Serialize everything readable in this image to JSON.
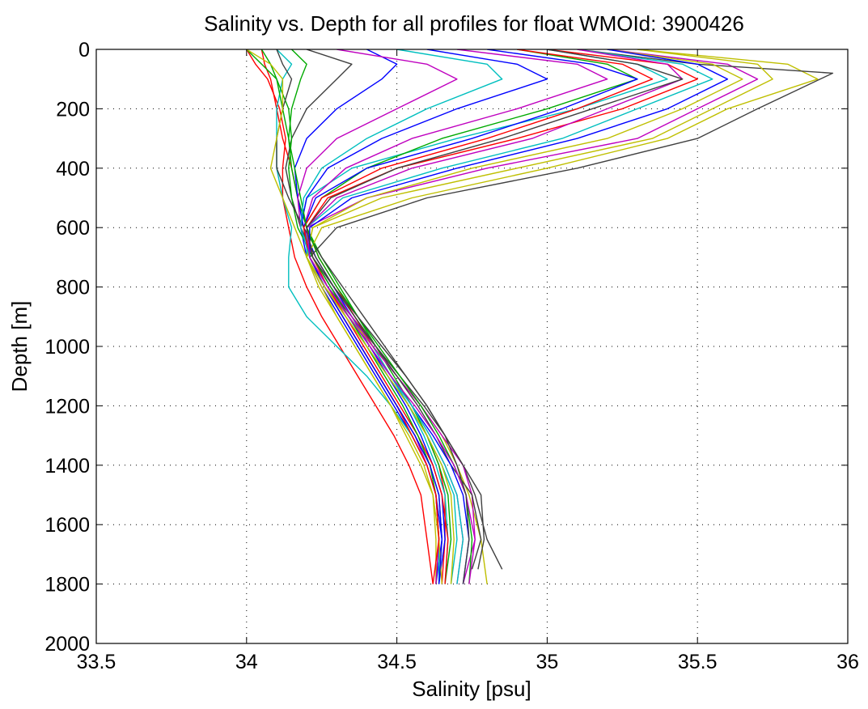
{
  "chart_data": {
    "type": "line",
    "title": "Salinity vs. Depth for all profiles for float WMOId: 3900426",
    "xlabel": "Salinity [psu]",
    "ylabel": "Depth [m]",
    "xlim": [
      33.5,
      36
    ],
    "ylim": [
      0,
      2000
    ],
    "y_reversed": true,
    "x_ticks": [
      "33.5",
      "34",
      "34.5",
      "35",
      "35.5",
      "36"
    ],
    "y_ticks": [
      "0",
      "200",
      "400",
      "600",
      "800",
      "1000",
      "1200",
      "1400",
      "1600",
      "1800",
      "2000"
    ],
    "grid": true,
    "legend": "none",
    "series_colors": [
      "#ff0000",
      "#00aa00",
      "#0000ff",
      "#00bfbf",
      "#bf00bf",
      "#bfbf00",
      "#404040"
    ],
    "series": [
      {
        "x": [
          34.05,
          34.06,
          34.08,
          34.1,
          34.12,
          34.15,
          34.17,
          34.2,
          34.24,
          34.3,
          34.36,
          34.42,
          34.48,
          34.54,
          34.6,
          34.64,
          34.66,
          34.66,
          34.65
        ],
        "y": [
          0,
          50,
          100,
          200,
          300,
          400,
          500,
          600,
          700,
          800,
          900,
          1000,
          1100,
          1200,
          1300,
          1400,
          1500,
          1650,
          1800
        ]
      },
      {
        "x": [
          34.15,
          34.2,
          34.18,
          34.15,
          34.14,
          34.15,
          34.17,
          34.2,
          34.25,
          34.31,
          34.37,
          34.43,
          34.49,
          34.55,
          34.6,
          34.64,
          34.67,
          34.68,
          34.66
        ],
        "y": [
          0,
          50,
          100,
          200,
          300,
          400,
          500,
          600,
          700,
          800,
          900,
          1000,
          1100,
          1200,
          1300,
          1400,
          1500,
          1650,
          1800
        ]
      },
      {
        "x": [
          34.4,
          34.5,
          34.45,
          34.3,
          34.2,
          34.16,
          34.17,
          34.19,
          34.23,
          34.29,
          34.35,
          34.41,
          34.47,
          34.53,
          34.58,
          34.62,
          34.65,
          34.66,
          34.64
        ],
        "y": [
          0,
          50,
          100,
          200,
          300,
          400,
          500,
          600,
          700,
          800,
          900,
          1000,
          1100,
          1200,
          1300,
          1400,
          1500,
          1650,
          1800
        ]
      },
      {
        "x": [
          35.0,
          35.3,
          35.4,
          35.1,
          34.7,
          34.35,
          34.2,
          34.18,
          34.22,
          34.28,
          34.35,
          34.42,
          34.48,
          34.54,
          34.59,
          34.63,
          34.66,
          34.67,
          34.66
        ],
        "y": [
          0,
          50,
          100,
          200,
          300,
          400,
          500,
          600,
          700,
          800,
          900,
          1000,
          1100,
          1200,
          1300,
          1400,
          1500,
          1650,
          1800
        ]
      },
      {
        "x": [
          35.2,
          35.6,
          35.7,
          35.5,
          35.3,
          34.8,
          34.4,
          34.2,
          34.21,
          34.27,
          34.34,
          34.41,
          34.48,
          34.55,
          34.61,
          34.66,
          34.7,
          34.72,
          34.7
        ],
        "y": [
          0,
          50,
          100,
          200,
          300,
          400,
          500,
          600,
          700,
          800,
          900,
          1000,
          1100,
          1200,
          1300,
          1400,
          1500,
          1650,
          1800
        ]
      },
      {
        "x": [
          35.3,
          35.8,
          35.9,
          35.6,
          35.4,
          35.0,
          34.55,
          34.25,
          34.2,
          34.26,
          34.34,
          34.42,
          34.5,
          34.58,
          34.65,
          34.7,
          34.74,
          34.78,
          34.8
        ],
        "y": [
          0,
          50,
          100,
          200,
          300,
          400,
          500,
          600,
          700,
          800,
          900,
          1000,
          1100,
          1200,
          1300,
          1400,
          1500,
          1650,
          1800
        ]
      },
      {
        "x": [
          35.1,
          35.5,
          35.95,
          35.7,
          35.5,
          35.1,
          34.6,
          34.3,
          34.21,
          34.27,
          34.35,
          34.43,
          34.51,
          34.59,
          34.66,
          34.72,
          34.76,
          34.8,
          34.85
        ],
        "y": [
          0,
          50,
          80,
          200,
          300,
          400,
          500,
          600,
          700,
          800,
          900,
          1000,
          1100,
          1200,
          1300,
          1400,
          1500,
          1650,
          1750
        ]
      },
      {
        "x": [
          34.0,
          34.03,
          34.07,
          34.11,
          34.13,
          34.12,
          34.12,
          34.14,
          34.16,
          34.2,
          34.25,
          34.31,
          34.37,
          34.43,
          34.49,
          34.54,
          34.58,
          34.6,
          34.62
        ],
        "y": [
          0,
          50,
          100,
          200,
          300,
          400,
          500,
          600,
          700,
          800,
          900,
          1000,
          1100,
          1200,
          1300,
          1400,
          1500,
          1650,
          1800
        ]
      },
      {
        "x": [
          34.9,
          35.2,
          35.3,
          35.0,
          34.65,
          34.4,
          34.25,
          34.19,
          34.21,
          34.26,
          34.32,
          34.38,
          34.44,
          34.5,
          34.56,
          34.61,
          34.64,
          34.65,
          34.64
        ],
        "y": [
          0,
          50,
          100,
          200,
          300,
          400,
          500,
          600,
          700,
          800,
          900,
          1000,
          1100,
          1200,
          1300,
          1400,
          1500,
          1650,
          1800
        ]
      },
      {
        "x": [
          34.6,
          34.9,
          35.0,
          34.7,
          34.45,
          34.27,
          34.2,
          34.18,
          34.2,
          34.25,
          34.31,
          34.37,
          34.43,
          34.49,
          34.55,
          34.6,
          34.63,
          34.65,
          34.63
        ],
        "y": [
          0,
          50,
          100,
          200,
          300,
          400,
          500,
          600,
          700,
          800,
          900,
          1000,
          1100,
          1200,
          1300,
          1400,
          1500,
          1650,
          1800
        ]
      },
      {
        "x": [
          34.1,
          34.15,
          34.12,
          34.1,
          34.1,
          34.1,
          34.12,
          34.15,
          34.14,
          34.14,
          34.2,
          34.3,
          34.4,
          34.48,
          34.55,
          34.6,
          34.63,
          34.64,
          34.64
        ],
        "y": [
          0,
          50,
          100,
          200,
          300,
          400,
          500,
          600,
          700,
          800,
          900,
          1000,
          1100,
          1200,
          1300,
          1400,
          1500,
          1650,
          1800
        ]
      },
      {
        "x": [
          34.7,
          35.1,
          35.2,
          34.9,
          34.55,
          34.33,
          34.22,
          34.19,
          34.22,
          34.28,
          34.35,
          34.42,
          34.5,
          34.58,
          34.65,
          34.72,
          34.75,
          34.76,
          34.72
        ],
        "y": [
          0,
          50,
          100,
          200,
          300,
          400,
          500,
          600,
          700,
          800,
          900,
          1000,
          1100,
          1200,
          1300,
          1400,
          1500,
          1650,
          1800
        ]
      },
      {
        "x": [
          35.2,
          35.55,
          35.65,
          35.45,
          35.2,
          34.75,
          34.4,
          34.22,
          34.2,
          34.25,
          34.3,
          34.36,
          34.42,
          34.48,
          34.54,
          34.59,
          34.62,
          34.63,
          34.63
        ],
        "y": [
          0,
          50,
          100,
          200,
          300,
          400,
          500,
          600,
          700,
          800,
          900,
          1000,
          1100,
          1200,
          1300,
          1400,
          1500,
          1650,
          1800
        ]
      },
      {
        "x": [
          34.2,
          34.35,
          34.3,
          34.2,
          34.15,
          34.13,
          34.15,
          34.18,
          34.23,
          34.29,
          34.36,
          34.43,
          34.5,
          34.57,
          34.63,
          34.68,
          34.75,
          34.78,
          34.75
        ],
        "y": [
          0,
          50,
          100,
          200,
          300,
          400,
          500,
          600,
          700,
          800,
          900,
          1000,
          1100,
          1200,
          1300,
          1400,
          1500,
          1650,
          1750
        ]
      },
      {
        "x": [
          35.0,
          35.4,
          35.5,
          35.25,
          34.9,
          34.5,
          34.27,
          34.2,
          34.22,
          34.27,
          34.33,
          34.39,
          34.45,
          34.51,
          34.57,
          34.62,
          34.65,
          34.67,
          34.66
        ],
        "y": [
          0,
          50,
          100,
          200,
          300,
          400,
          500,
          600,
          700,
          800,
          900,
          1000,
          1100,
          1200,
          1300,
          1400,
          1500,
          1650,
          1800
        ]
      },
      {
        "x": [
          34.0,
          34.05,
          34.1,
          34.14,
          34.15,
          34.14,
          34.15,
          34.17,
          34.22,
          34.28,
          34.34,
          34.4,
          34.46,
          34.52,
          34.57,
          34.61,
          34.63,
          34.64,
          34.63
        ],
        "y": [
          0,
          50,
          100,
          200,
          300,
          400,
          500,
          600,
          700,
          800,
          900,
          1000,
          1100,
          1200,
          1300,
          1400,
          1500,
          1650,
          1800
        ]
      },
      {
        "x": [
          34.8,
          35.15,
          35.3,
          35.05,
          34.75,
          34.4,
          34.23,
          34.19,
          34.21,
          34.27,
          34.34,
          34.41,
          34.48,
          34.55,
          34.62,
          34.68,
          34.72,
          34.74,
          34.72
        ],
        "y": [
          0,
          50,
          100,
          200,
          300,
          400,
          500,
          600,
          700,
          800,
          900,
          1000,
          1100,
          1200,
          1300,
          1400,
          1500,
          1650,
          1800
        ]
      },
      {
        "x": [
          35.1,
          35.45,
          35.55,
          35.3,
          35.05,
          34.65,
          34.32,
          34.2,
          34.2,
          34.26,
          34.33,
          34.4,
          34.47,
          34.54,
          34.6,
          34.65,
          34.69,
          34.7,
          34.68
        ],
        "y": [
          0,
          50,
          100,
          200,
          300,
          400,
          500,
          600,
          700,
          800,
          900,
          1000,
          1100,
          1200,
          1300,
          1400,
          1500,
          1650,
          1800
        ]
      },
      {
        "x": [
          34.3,
          34.6,
          34.7,
          34.5,
          34.3,
          34.2,
          34.17,
          34.18,
          34.21,
          34.26,
          34.32,
          34.38,
          34.44,
          34.5,
          34.56,
          34.6,
          34.63,
          34.64,
          34.63
        ],
        "y": [
          0,
          50,
          100,
          200,
          300,
          400,
          500,
          600,
          700,
          800,
          900,
          1000,
          1100,
          1200,
          1300,
          1400,
          1500,
          1650,
          1800
        ]
      },
      {
        "x": [
          35.3,
          35.7,
          35.75,
          35.55,
          35.35,
          34.9,
          34.45,
          34.22,
          34.2,
          34.24,
          34.3,
          34.36,
          34.42,
          34.48,
          34.53,
          34.58,
          34.62,
          34.64,
          34.65
        ],
        "y": [
          0,
          50,
          100,
          200,
          300,
          400,
          500,
          600,
          700,
          800,
          900,
          1000,
          1100,
          1200,
          1300,
          1400,
          1500,
          1650,
          1800
        ]
      },
      {
        "x": [
          34.1,
          34.12,
          34.15,
          34.12,
          34.1,
          34.1,
          34.14,
          34.19,
          34.25,
          34.32,
          34.39,
          34.46,
          34.53,
          34.6,
          34.66,
          34.72,
          34.78,
          34.79,
          34.77
        ],
        "y": [
          0,
          50,
          100,
          200,
          300,
          400,
          500,
          600,
          700,
          800,
          900,
          1000,
          1100,
          1200,
          1300,
          1400,
          1500,
          1650,
          1750
        ]
      },
      {
        "x": [
          34.9,
          35.25,
          35.35,
          35.1,
          34.8,
          34.45,
          34.25,
          34.19,
          34.21,
          34.26,
          34.32,
          34.38,
          34.44,
          34.5,
          34.55,
          34.6,
          34.63,
          34.64,
          34.62
        ],
        "y": [
          0,
          50,
          100,
          200,
          300,
          400,
          500,
          600,
          700,
          800,
          900,
          1000,
          1100,
          1200,
          1300,
          1400,
          1500,
          1650,
          1800
        ]
      },
      {
        "x": [
          34.05,
          34.08,
          34.1,
          34.12,
          34.14,
          34.16,
          34.18,
          34.2,
          34.24,
          34.3,
          34.37,
          34.44,
          34.51,
          34.58,
          34.64,
          34.69,
          34.73,
          34.75,
          34.74
        ],
        "y": [
          0,
          50,
          100,
          200,
          300,
          400,
          500,
          600,
          700,
          800,
          900,
          1000,
          1100,
          1200,
          1300,
          1400,
          1500,
          1650,
          1800
        ]
      },
      {
        "x": [
          35.2,
          35.5,
          35.6,
          35.4,
          35.1,
          34.7,
          34.35,
          34.21,
          34.21,
          34.26,
          34.32,
          34.38,
          34.44,
          34.5,
          34.56,
          34.61,
          34.64,
          34.65,
          34.64
        ],
        "y": [
          0,
          50,
          100,
          200,
          300,
          400,
          500,
          600,
          700,
          800,
          900,
          1000,
          1100,
          1200,
          1300,
          1400,
          1500,
          1650,
          1800
        ]
      },
      {
        "x": [
          34.5,
          34.8,
          34.85,
          34.6,
          34.4,
          34.25,
          34.19,
          34.18,
          34.21,
          34.27,
          34.34,
          34.41,
          34.48,
          34.55,
          34.61,
          34.66,
          34.7,
          34.72,
          34.7
        ],
        "y": [
          0,
          50,
          100,
          200,
          300,
          400,
          500,
          600,
          700,
          800,
          900,
          1000,
          1100,
          1200,
          1300,
          1400,
          1500,
          1650,
          1800
        ]
      },
      {
        "x": [
          35.1,
          35.4,
          35.45,
          35.2,
          34.95,
          34.55,
          34.3,
          34.2,
          34.21,
          34.27,
          34.34,
          34.41,
          34.48,
          34.56,
          34.63,
          34.69,
          34.73,
          34.76,
          34.74
        ],
        "y": [
          0,
          50,
          100,
          200,
          300,
          400,
          500,
          600,
          700,
          800,
          900,
          1000,
          1100,
          1200,
          1300,
          1400,
          1500,
          1650,
          1800
        ]
      },
      {
        "x": [
          34.0,
          34.08,
          34.12,
          34.12,
          34.1,
          34.08,
          34.12,
          34.16,
          34.2,
          34.26,
          34.33,
          34.4,
          34.47,
          34.54,
          34.6,
          34.65,
          34.68,
          34.69,
          34.68
        ],
        "y": [
          0,
          50,
          100,
          200,
          300,
          400,
          500,
          600,
          700,
          800,
          900,
          1000,
          1100,
          1200,
          1300,
          1400,
          1500,
          1650,
          1800
        ]
      },
      {
        "x": [
          35.0,
          35.3,
          35.45,
          35.15,
          34.85,
          34.5,
          34.28,
          34.2,
          34.22,
          34.29,
          34.37,
          34.45,
          34.53,
          34.6,
          34.66,
          34.7,
          34.73,
          34.74,
          34.72
        ],
        "y": [
          0,
          50,
          100,
          200,
          300,
          400,
          500,
          600,
          700,
          800,
          900,
          1000,
          1100,
          1200,
          1300,
          1400,
          1500,
          1650,
          1800
        ]
      }
    ]
  }
}
